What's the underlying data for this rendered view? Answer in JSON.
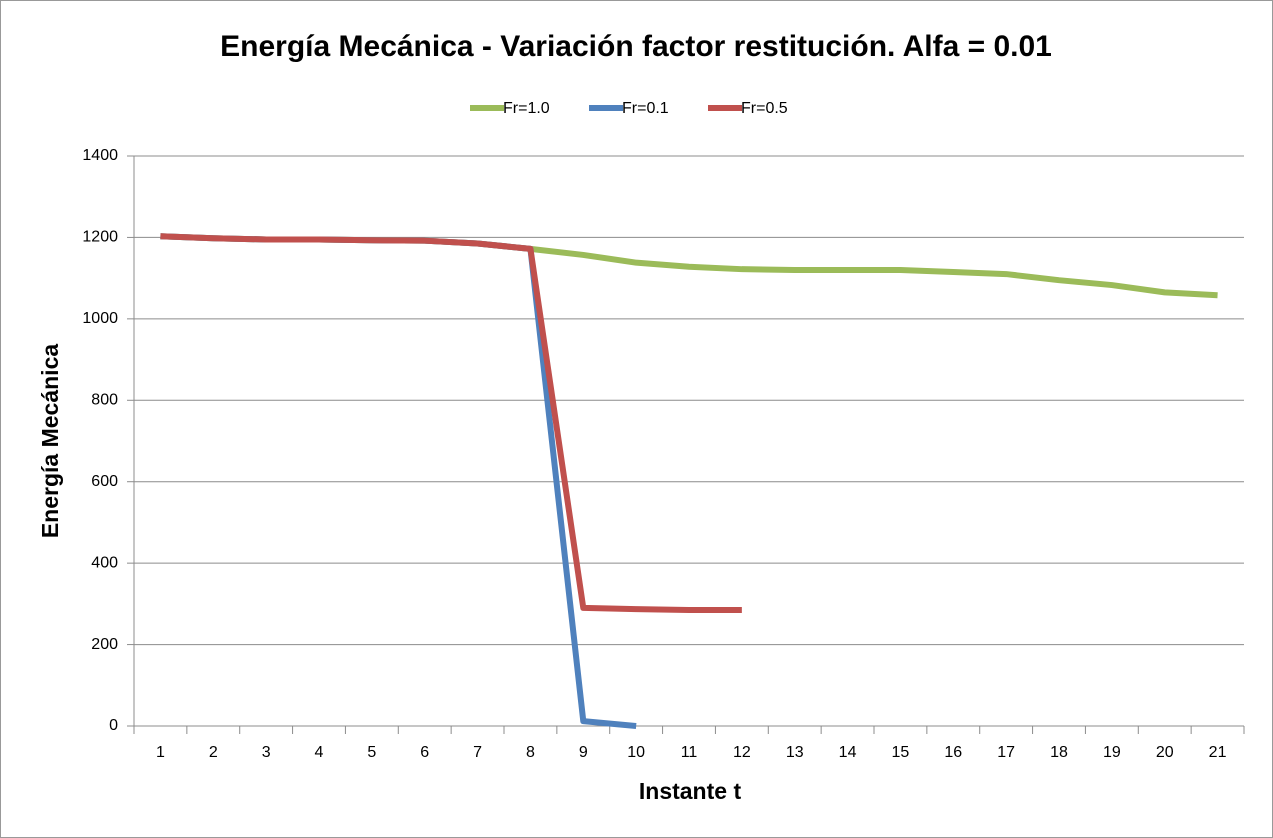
{
  "chart_data": {
    "type": "line",
    "title": "Energía Mecánica - Variación factor restitución. Alfa = 0.01",
    "x_label": "Instante t",
    "y_label": "Energía Mecánica",
    "categories": [
      "1",
      "2",
      "3",
      "4",
      "5",
      "6",
      "7",
      "8",
      "9",
      "10",
      "11",
      "12",
      "13",
      "14",
      "15",
      "16",
      "17",
      "18",
      "19",
      "20",
      "21"
    ],
    "series": [
      {
        "name": "Fr=1.0",
        "color": "#9bbb59",
        "values": [
          1203,
          1198,
          1195,
          1195,
          1193,
          1192,
          1185,
          1172,
          1157,
          1138,
          1128,
          1122,
          1120,
          1120,
          1120,
          1115,
          1110,
          1095,
          1083,
          1065,
          1058
        ]
      },
      {
        "name": "Fr=0.1",
        "color": "#4f81bd",
        "values": [
          1203,
          1198,
          1195,
          1195,
          1193,
          1192,
          1185,
          1172,
          12,
          0,
          null,
          null,
          null,
          null,
          null,
          null,
          null,
          null,
          null,
          null,
          null
        ]
      },
      {
        "name": "Fr=0.5",
        "color": "#c0504d",
        "values": [
          1203,
          1198,
          1195,
          1195,
          1193,
          1192,
          1185,
          1172,
          290,
          287,
          285,
          285,
          null,
          null,
          null,
          null,
          null,
          null,
          null,
          null,
          null
        ]
      }
    ],
    "ylim": [
      0,
      1400
    ],
    "yticks": [
      0,
      200,
      400,
      600,
      800,
      1000,
      1200,
      1400
    ],
    "grid": true,
    "legend": "top"
  }
}
